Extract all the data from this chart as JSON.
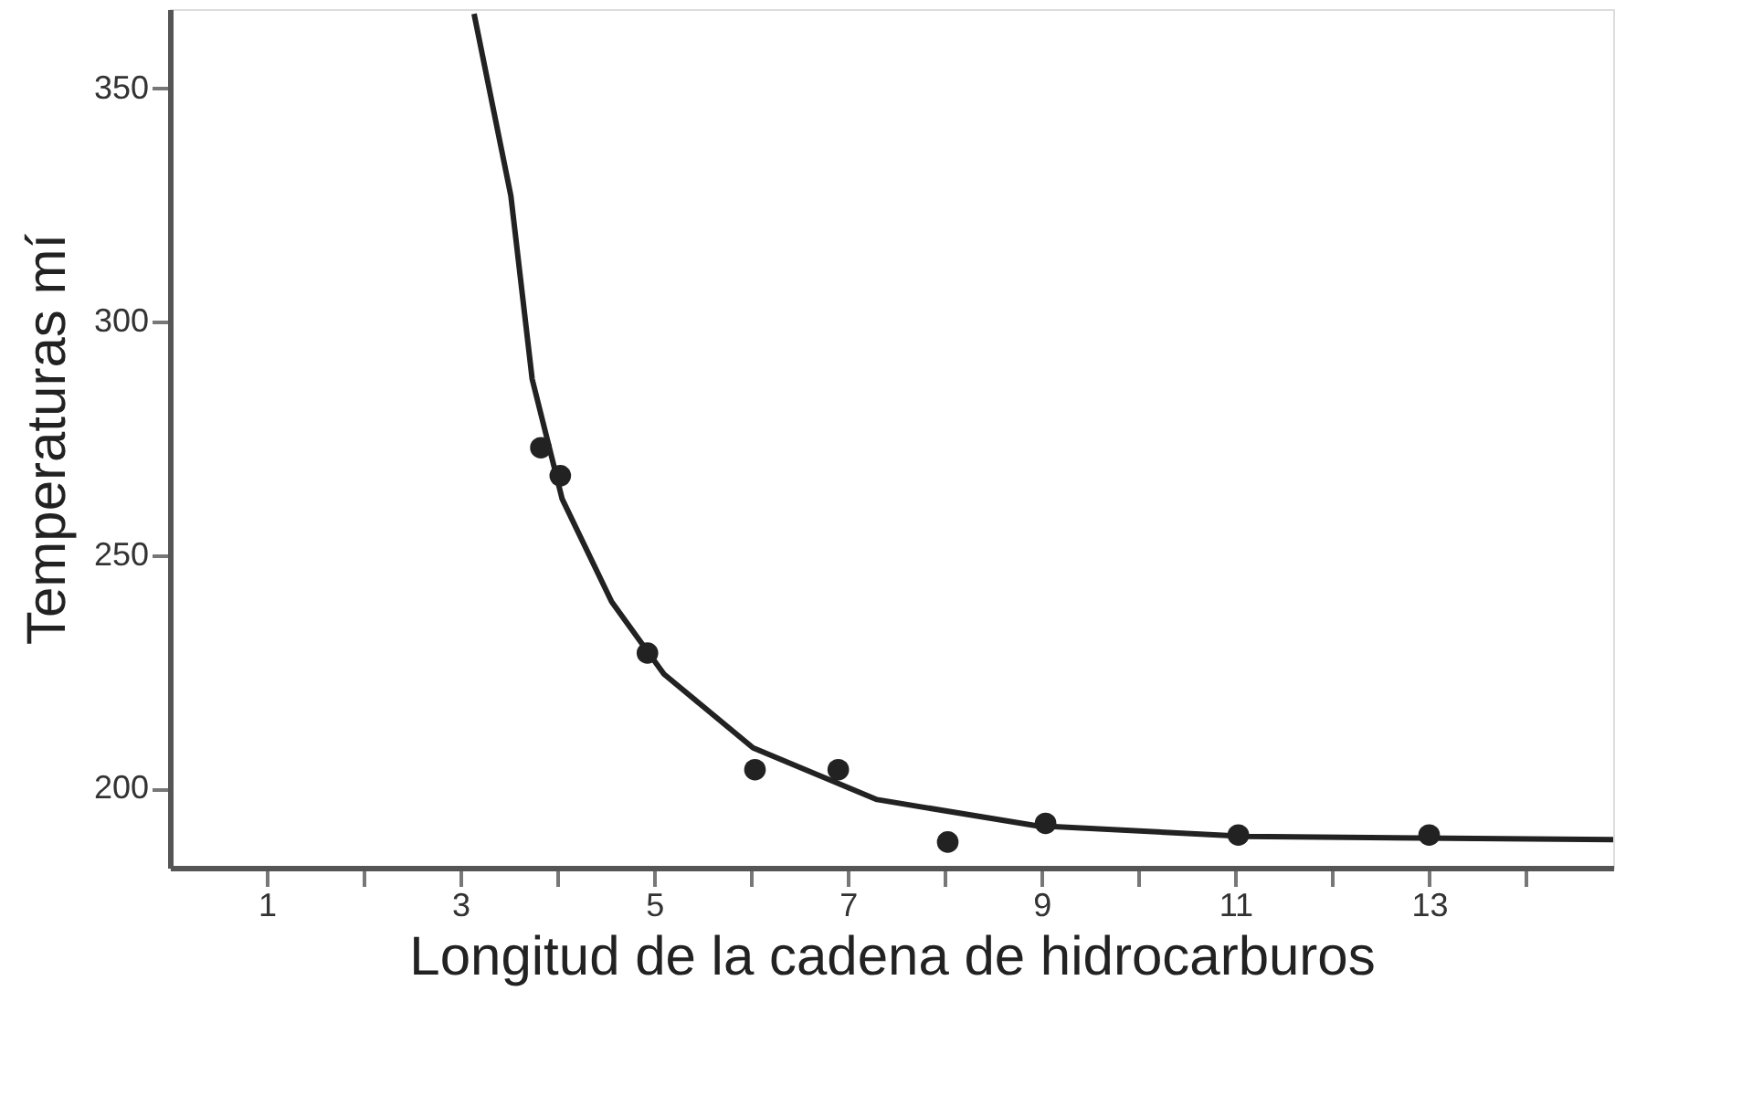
{
  "chart_data": {
    "type": "scatter",
    "xlabel": "Longitud de la cadena de hidrocarburos",
    "ylabel": "Temperaturas mí",
    "xlim": [
      0,
      14.9
    ],
    "ylim": [
      183,
      367
    ],
    "xticks": [
      1,
      {
        "value": 2,
        "label": null
      },
      3,
      {
        "value": 4,
        "label": null
      },
      5,
      {
        "value": 6,
        "label": null
      },
      7,
      {
        "value": 8,
        "label": null
      },
      9,
      {
        "value": 10,
        "label": null
      },
      11,
      {
        "value": 12,
        "label": null
      },
      13,
      {
        "value": 14,
        "label": null
      }
    ],
    "yticks": [
      200,
      250,
      300,
      350
    ],
    "grid": false,
    "marker": "circle",
    "series": [
      {
        "type": "line",
        "marker": "none",
        "color": "#222222",
        "x": [
          3.14,
          3.52,
          3.74,
          4.05,
          4.56,
          5.1,
          6.02,
          7.3,
          8.94,
          11.1,
          14.9
        ],
        "values": [
          366,
          327,
          287.7,
          262,
          240,
          224.5,
          208.7,
          197.6,
          192,
          189.7,
          189
        ]
      },
      {
        "color": "#222222",
        "x": [
          4.03,
          4.93,
          6.04,
          6.9,
          8.03
        ],
        "values": [
          267,
          229,
          204,
          204,
          188.5
        ]
      },
      {
        "color": "#222222",
        "x": [
          3.83,
          9.04,
          11.03,
          13
        ],
        "values": [
          273,
          192.5,
          190,
          190
        ]
      }
    ]
  }
}
